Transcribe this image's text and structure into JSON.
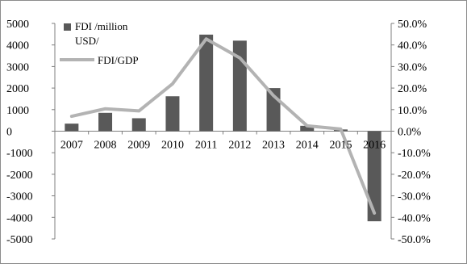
{
  "chart_data": {
    "type": "bar+line",
    "categories": [
      "2007",
      "2008",
      "2009",
      "2010",
      "2011",
      "2012",
      "2013",
      "2014",
      "2015",
      "2016"
    ],
    "series": [
      {
        "name": "FDI /million USD/",
        "type": "bar",
        "axis": "left",
        "values": [
          350,
          850,
          600,
          1620,
          4480,
          4200,
          2000,
          250,
          80,
          -4180
        ],
        "color": "#595959"
      },
      {
        "name": "FDI/GDP",
        "type": "line",
        "axis": "right",
        "values": [
          0.069,
          0.104,
          0.094,
          0.22,
          0.428,
          0.34,
          0.165,
          0.025,
          0.01,
          -0.38
        ],
        "color": "#b3b3b3"
      }
    ],
    "y_left": {
      "ylim": [
        -5000,
        5000
      ],
      "ticks": [
        5000,
        4000,
        3000,
        2000,
        1000,
        0,
        -1000,
        -2000,
        -3000,
        -4000,
        -5000
      ]
    },
    "y_right": {
      "ylim": [
        -0.5,
        0.5
      ],
      "ticks": [
        0.5,
        0.4,
        0.3,
        0.2,
        0.1,
        0.0,
        -0.1,
        -0.2,
        -0.3,
        -0.4,
        -0.5
      ],
      "tick_labels": [
        "50.0%",
        "40.0%",
        "30.0%",
        "20.0%",
        "10.0%",
        "0.0%",
        "-10.0%",
        "-20.0%",
        "-30.0%",
        "-40.0%",
        "-50.0%"
      ]
    },
    "grid": false,
    "legend_position": "top-left",
    "legend": {
      "bar_label_line1": "FDI /million",
      "bar_label_line2": "USD/",
      "line_label": "FDI/GDP"
    }
  }
}
